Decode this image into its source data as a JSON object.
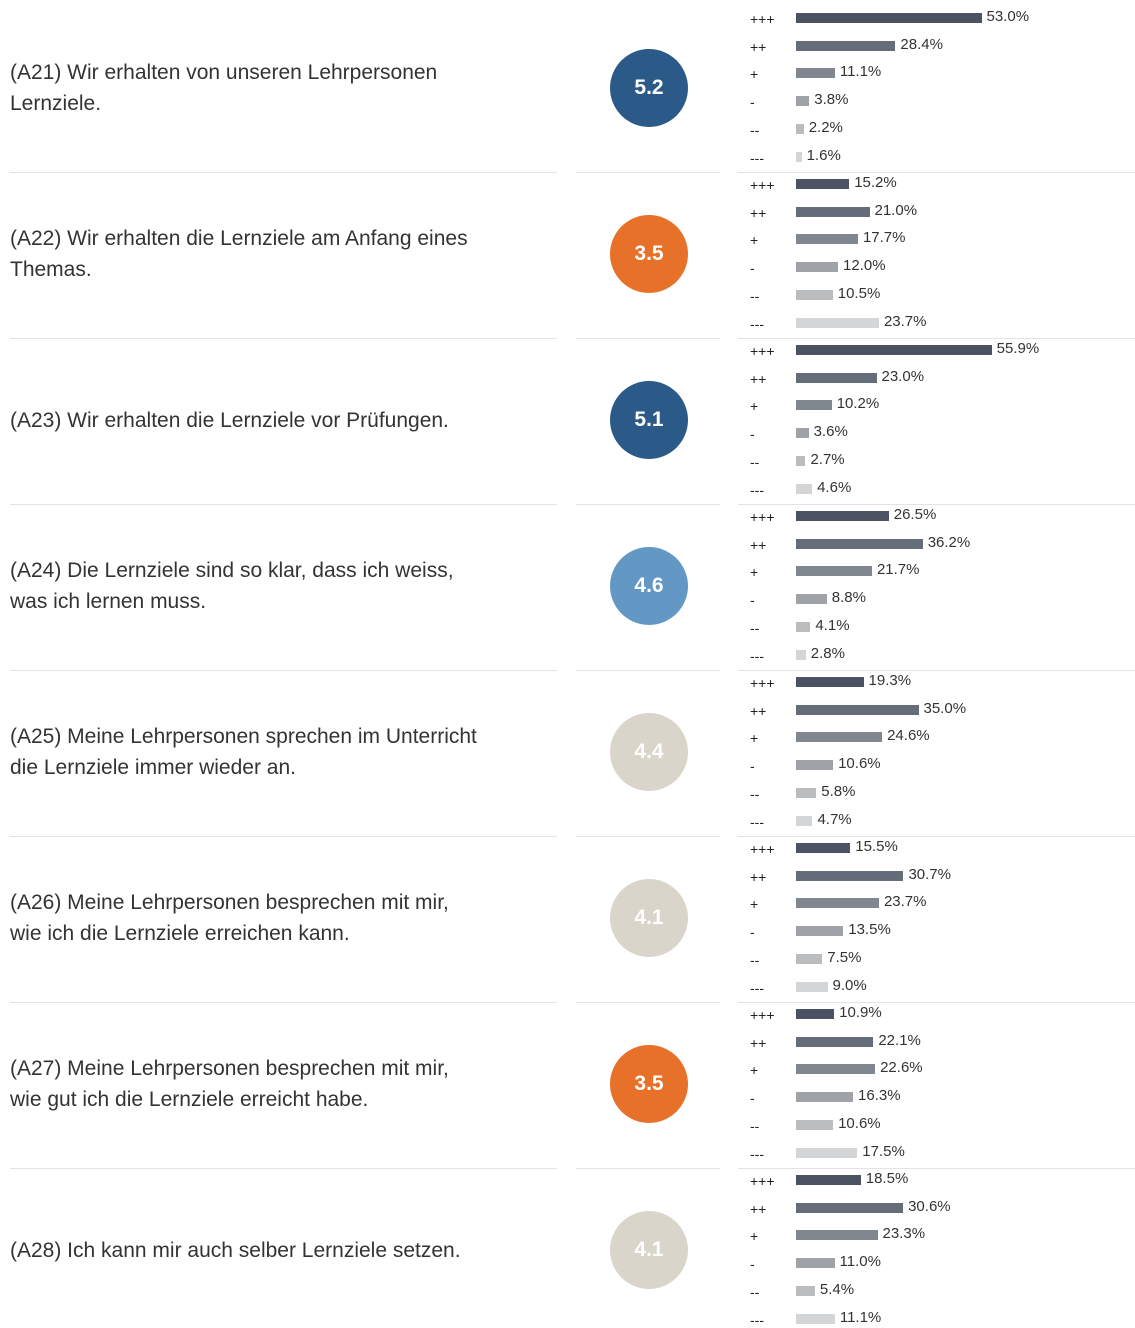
{
  "chart_data": {
    "type": "bar",
    "categories": [
      "+++",
      "++",
      "+",
      "-",
      "--",
      "---"
    ],
    "colors": [
      "#4b5363",
      "#656d79",
      "#80878f",
      "#9fa3a7",
      "#babcbe",
      "#d4d5d6"
    ],
    "items": [
      {
        "question": [
          "(A21) Wir erhalten von unseren Lehrpersonen",
          "Lernziele."
        ],
        "score": 5.2,
        "score_color": "#2c5a88",
        "values": [
          53.0,
          28.4,
          11.1,
          3.8,
          2.2,
          1.6
        ],
        "value_labels": [
          "53.0%",
          "28.4%",
          "11.1%",
          "3.8%",
          "2.2%",
          "1.6%"
        ]
      },
      {
        "question": [
          "(A22) Wir erhalten die Lernziele am Anfang eines",
          "Themas."
        ],
        "score": 3.5,
        "score_color": "#e8712a",
        "values": [
          15.2,
          21.0,
          17.7,
          12.0,
          10.5,
          23.7
        ],
        "value_labels": [
          "15.2%",
          "21.0%",
          "17.7%",
          "12.0%",
          "10.5%",
          "23.7%"
        ]
      },
      {
        "question": [
          "(A23) Wir erhalten die Lernziele vor Prüfungen."
        ],
        "score": 5.1,
        "score_color": "#2c5a88",
        "values": [
          55.9,
          23.0,
          10.2,
          3.6,
          2.7,
          4.6
        ],
        "value_labels": [
          "55.9%",
          "23.0%",
          "10.2%",
          "3.6%",
          "2.7%",
          "4.6%"
        ]
      },
      {
        "question": [
          "(A24) Die Lernziele sind so klar, dass ich weiss,",
          "was ich lernen muss."
        ],
        "score": 4.6,
        "score_color": "#6398c5",
        "values": [
          26.5,
          36.2,
          21.7,
          8.8,
          4.1,
          2.8
        ],
        "value_labels": [
          "26.5%",
          "36.2%",
          "21.7%",
          "8.8%",
          "4.1%",
          "2.8%"
        ]
      },
      {
        "question": [
          "(A25) Meine Lehrpersonen sprechen im Unterricht",
          "die Lernziele immer wieder an."
        ],
        "score": 4.4,
        "score_color": "#d9d5ca",
        "values": [
          19.3,
          35.0,
          24.6,
          10.6,
          5.8,
          4.7
        ],
        "value_labels": [
          "19.3%",
          "35.0%",
          "24.6%",
          "10.6%",
          "5.8%",
          "4.7%"
        ]
      },
      {
        "question": [
          "(A26) Meine Lehrpersonen besprechen mit mir,",
          "wie ich die Lernziele erreichen kann."
        ],
        "score": 4.1,
        "score_color": "#d9d5ca",
        "values": [
          15.5,
          30.7,
          23.7,
          13.5,
          7.5,
          9.0
        ],
        "value_labels": [
          "15.5%",
          "30.7%",
          "23.7%",
          "13.5%",
          "7.5%",
          "9.0%"
        ]
      },
      {
        "question": [
          "(A27) Meine Lehrpersonen besprechen mit mir,",
          "wie gut ich die Lernziele erreicht habe."
        ],
        "score": 3.5,
        "score_color": "#e8712a",
        "values": [
          10.9,
          22.1,
          22.6,
          16.3,
          10.6,
          17.5
        ],
        "value_labels": [
          "10.9%",
          "22.1%",
          "22.6%",
          "16.3%",
          "10.6%",
          "17.5%"
        ]
      },
      {
        "question": [
          "(A28) Ich kann mir auch selber Lernziele setzen."
        ],
        "score": 4.1,
        "score_color": "#d9d5ca",
        "values": [
          18.5,
          30.6,
          23.3,
          11.0,
          5.4,
          11.1
        ],
        "value_labels": [
          "18.5%",
          "30.6%",
          "23.3%",
          "11.0%",
          "5.4%",
          "11.1%"
        ]
      }
    ]
  }
}
